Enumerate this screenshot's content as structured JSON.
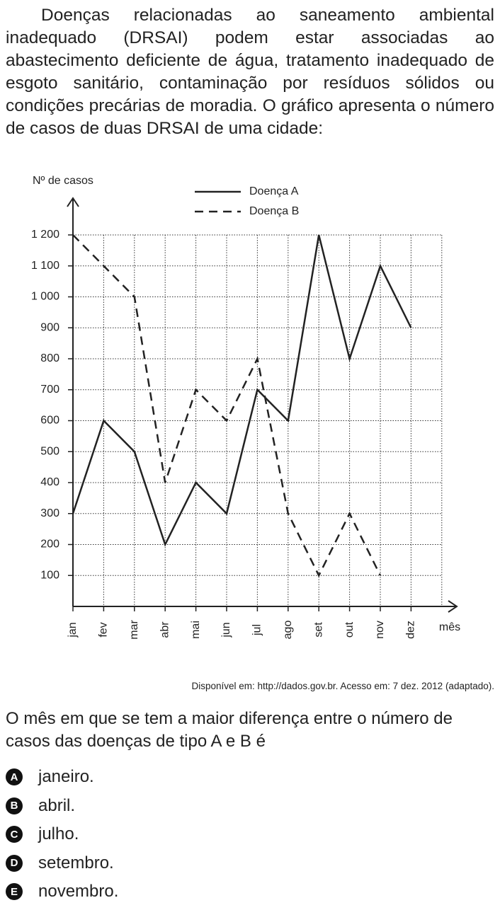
{
  "intro": "Doenças relacionadas ao saneamento ambiental inadequado (DRSAI) podem estar associadas ao abastecimento deficiente de água, tratamento inadequado de esgoto sanitário, contaminação por resíduos sólidos ou condições precárias de moradia. O gráfico apresenta o número de casos de duas DRSAI de uma cidade:",
  "chart_data": {
    "type": "line",
    "y_label": "Nº de casos",
    "x_label": "mês",
    "categories": [
      "jan",
      "fev",
      "mar",
      "abr",
      "mai",
      "jun",
      "jul",
      "ago",
      "set",
      "out",
      "nov",
      "dez"
    ],
    "series": [
      {
        "name": "Doença A",
        "color": "#222222",
        "style": "solid",
        "values": [
          300,
          600,
          500,
          200,
          400,
          300,
          700,
          600,
          1200,
          800,
          1100,
          900
        ]
      },
      {
        "name": "Doença B",
        "color": "#222222",
        "style": "dashed",
        "values": [
          1200,
          1100,
          1000,
          400,
          700,
          600,
          800,
          300,
          100,
          300,
          100,
          null
        ]
      }
    ],
    "ylim": [
      0,
      1200
    ],
    "yticks": [
      100,
      200,
      300,
      400,
      500,
      600,
      700,
      800,
      900,
      {
        "value": 1000,
        "label": "1 000"
      },
      {
        "value": 1100,
        "label": "1 100"
      },
      {
        "value": 1200,
        "label": "1 200"
      }
    ],
    "grid": true,
    "legend": "top"
  },
  "source": "Disponível em: http://dados.gov.br. Acesso em: 7 dez. 2012 (adaptado).",
  "question": "O mês em que se tem a maior diferença entre o número de casos das doenças de tipo A e B é",
  "options": [
    {
      "letter": "A",
      "text": "janeiro."
    },
    {
      "letter": "B",
      "text": "abril."
    },
    {
      "letter": "C",
      "text": "julho."
    },
    {
      "letter": "D",
      "text": "setembro."
    },
    {
      "letter": "E",
      "text": "novembro."
    }
  ]
}
